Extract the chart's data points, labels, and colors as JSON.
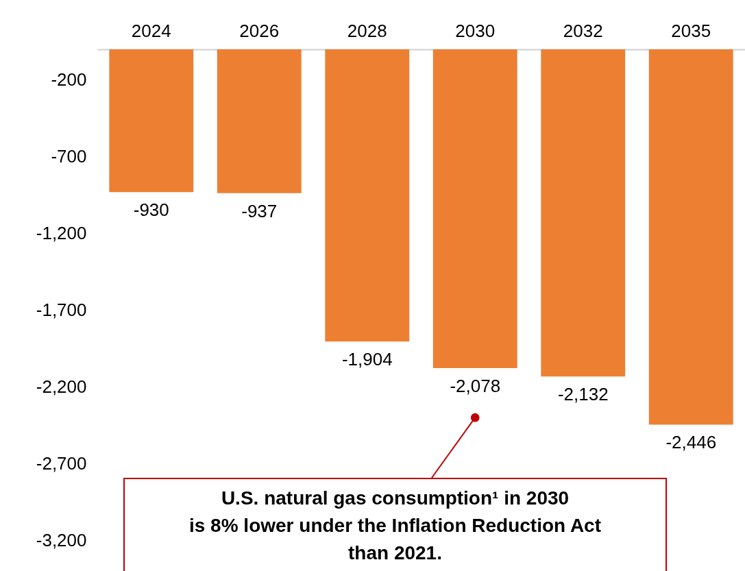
{
  "chart_data": {
    "type": "bar",
    "categories": [
      "2024",
      "2026",
      "2028",
      "2030",
      "2032",
      "2035"
    ],
    "values": [
      -930,
      -937,
      -1904,
      -2078,
      -2132,
      -2446
    ],
    "color": "#ed7f33",
    "ylim": [
      -3400,
      0
    ],
    "yticks": [
      {
        "value": -200,
        "label": "-200"
      },
      {
        "value": -700,
        "label": "-700"
      },
      {
        "value": -1200,
        "label": "-1,200"
      },
      {
        "value": -1700,
        "label": "-1,700"
      },
      {
        "value": -2200,
        "label": "-2,200"
      },
      {
        "value": -2700,
        "label": "-2,700"
      },
      {
        "value": -3200,
        "label": "-3,200"
      }
    ],
    "value_labels": [
      "-930",
      "-937",
      "-1,904",
      "-2,078",
      "-2,132",
      "-2,446"
    ],
    "grid": false,
    "annotations": [
      {
        "text": "U.S. natural gas consumption¹ in 2030\nis 8% lower under the Inflation Reduction Act\nthan 2021.",
        "x": "2030",
        "y": -2400
      }
    ]
  }
}
